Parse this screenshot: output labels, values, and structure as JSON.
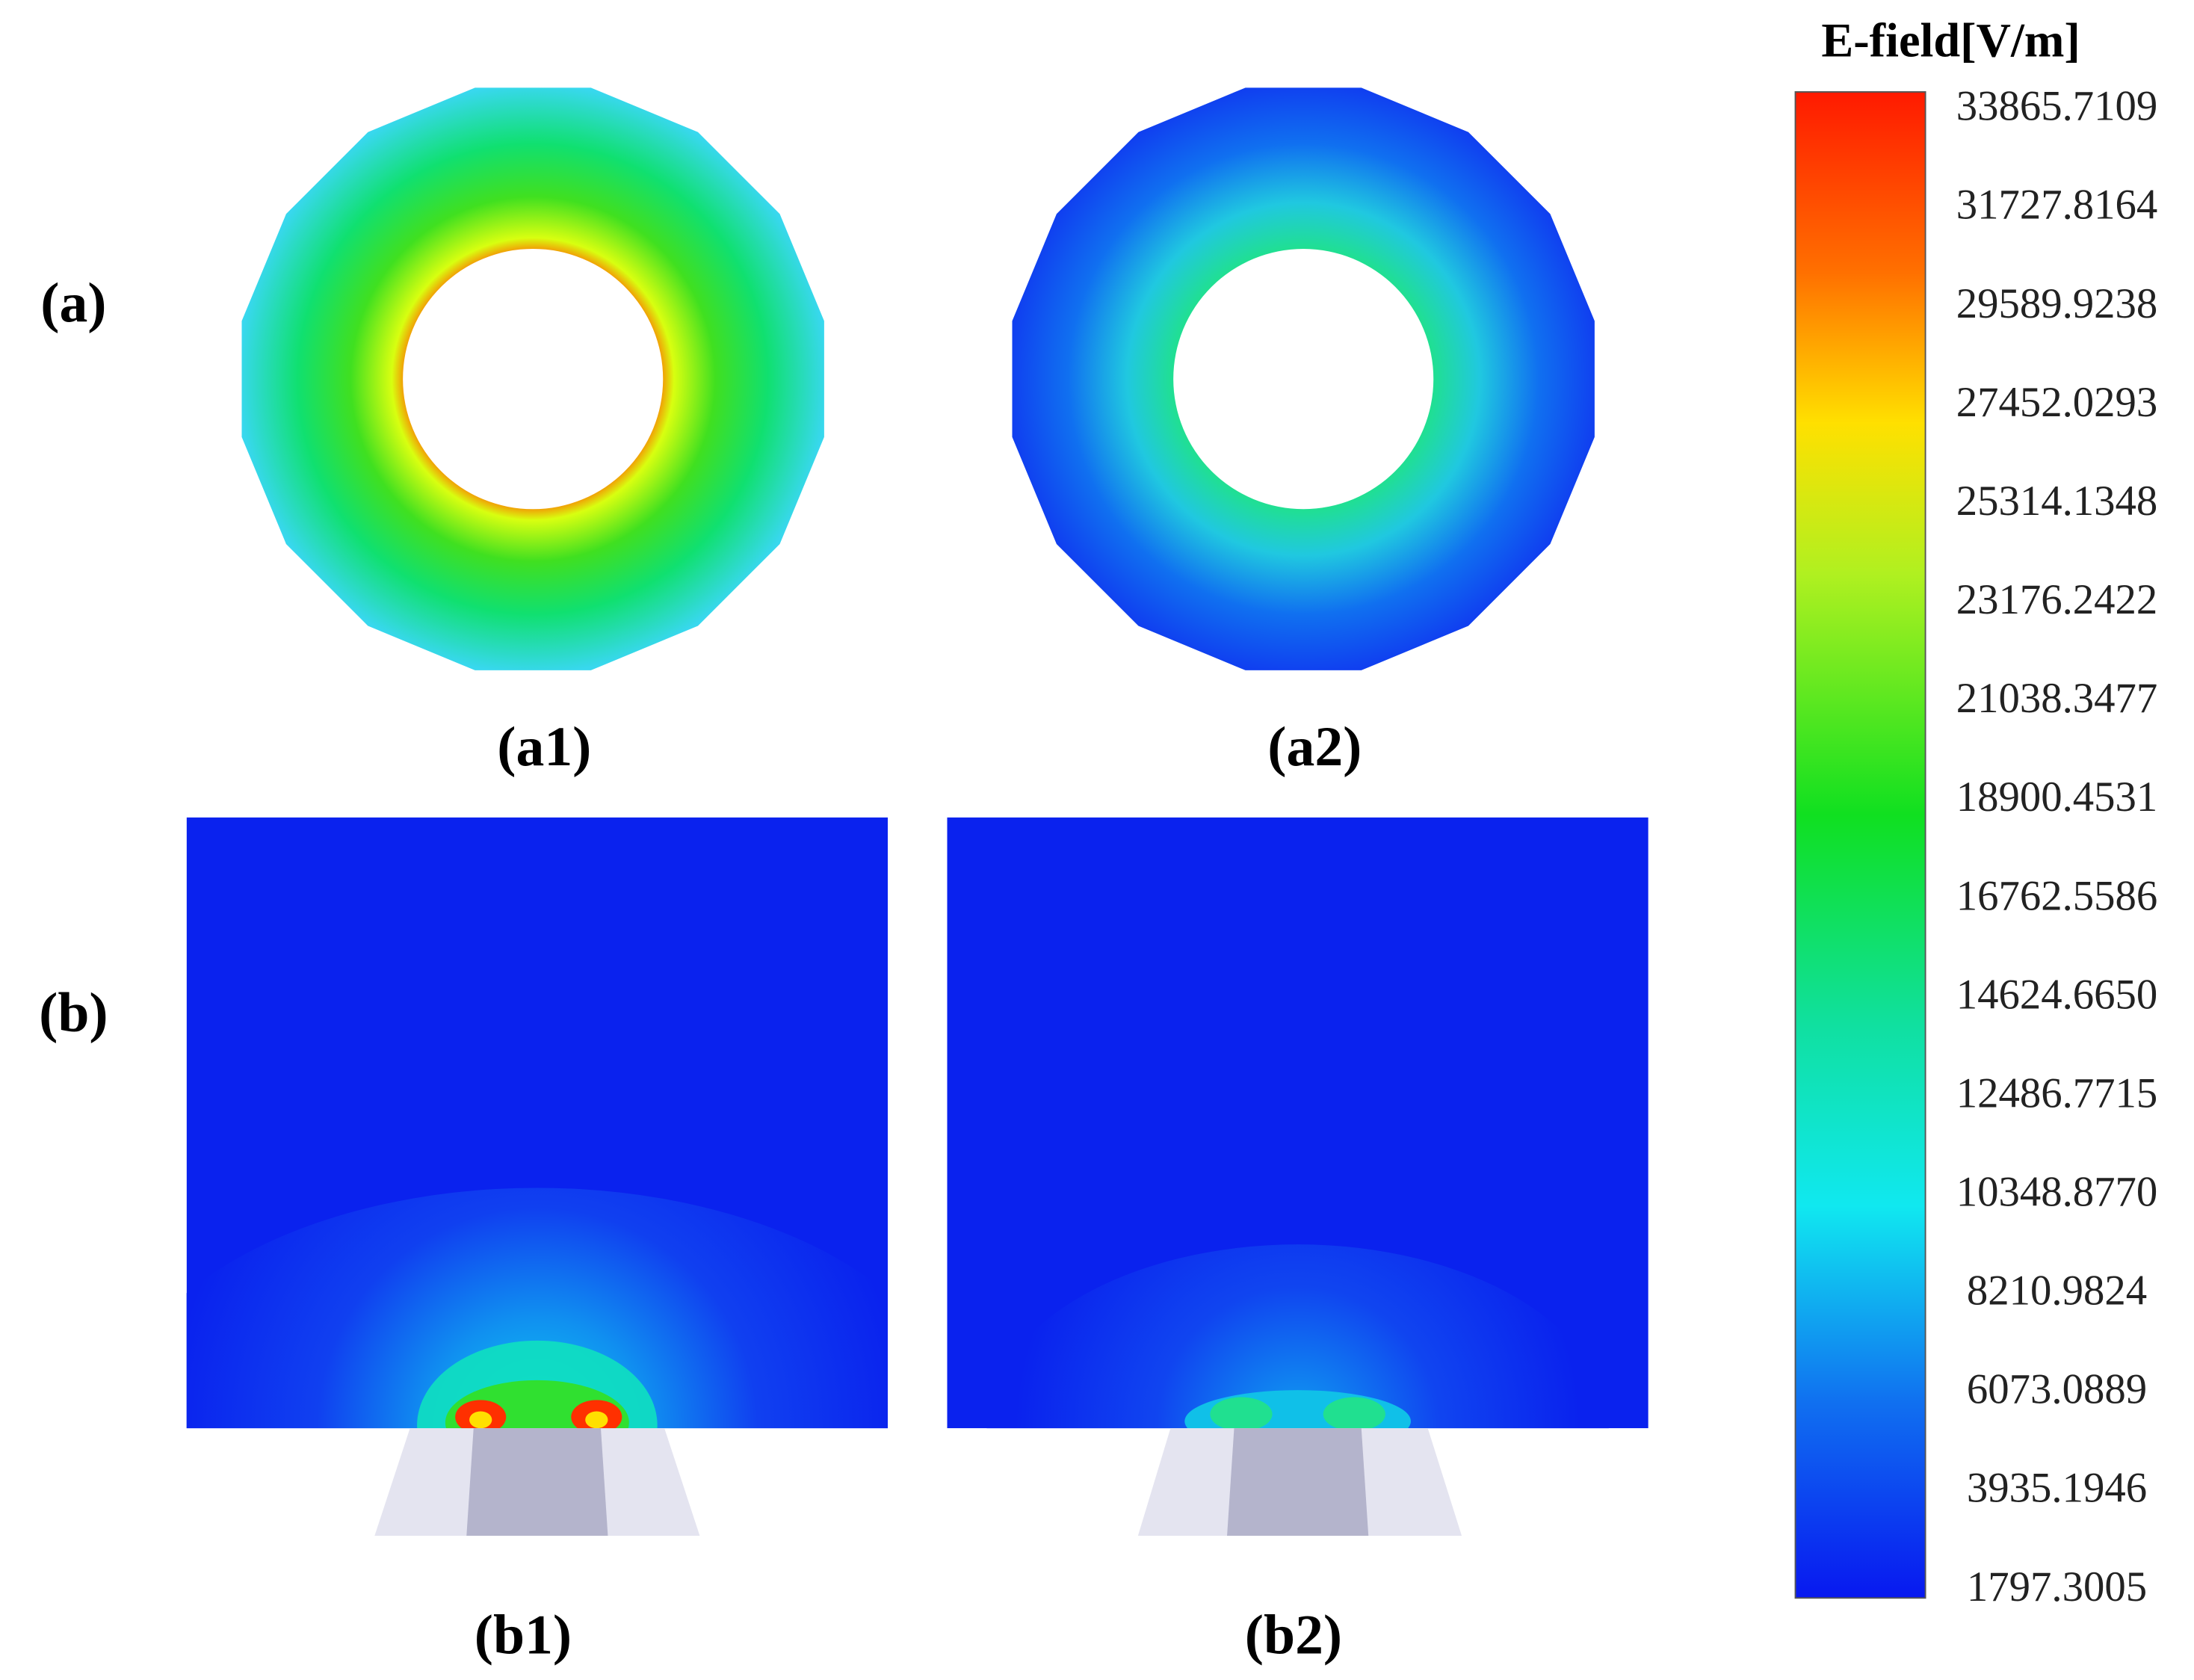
{
  "labels": {
    "a": "(a)",
    "b": "(b)",
    "a1": "(a1)",
    "a2": "(a2)",
    "b1": "(b1)",
    "b2": "(b2)"
  },
  "colorbar": {
    "title": "E-field[V/m]",
    "labels": [
      "33865.7109",
      "31727.8164",
      "29589.9238",
      "27452.0293",
      "25314.1348",
      "23176.2422",
      "21038.3477",
      "18900.4531",
      "16762.5586",
      "14624.6650",
      "12486.7715",
      "10348.8770",
      "8210.9824",
      "6073.0889",
      "3935.1946",
      "1797.3005"
    ]
  }
}
